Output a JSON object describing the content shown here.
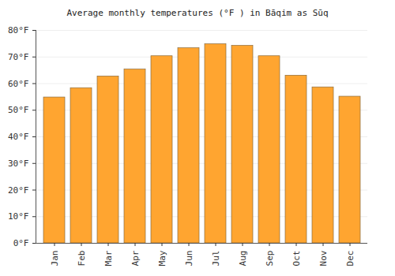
{
  "chart_data": {
    "type": "bar",
    "title": "Average monthly temperatures (°F ) in Bāqim as Sūq",
    "categories": [
      "Jan",
      "Feb",
      "Mar",
      "Apr",
      "May",
      "Jun",
      "Jul",
      "Aug",
      "Sep",
      "Oct",
      "Nov",
      "Dec"
    ],
    "values": [
      54.8,
      58.3,
      62.7,
      65.3,
      70.3,
      73.3,
      74.8,
      74.2,
      70.3,
      63.0,
      58.6,
      55.1
    ],
    "color": "#ffa530",
    "ylim": [
      0,
      80
    ],
    "yticks": [
      {
        "value": 0,
        "label": "0°F"
      },
      {
        "value": 10,
        "label": "10°F"
      },
      {
        "value": 20,
        "label": "20°F"
      },
      {
        "value": 30,
        "label": "30°F"
      },
      {
        "value": 40,
        "label": "40°F"
      },
      {
        "value": 50,
        "label": "50°F"
      },
      {
        "value": 60,
        "label": "60°F"
      },
      {
        "value": 70,
        "label": "70°F"
      },
      {
        "value": 80,
        "label": "80°F"
      }
    ],
    "grid": true
  }
}
